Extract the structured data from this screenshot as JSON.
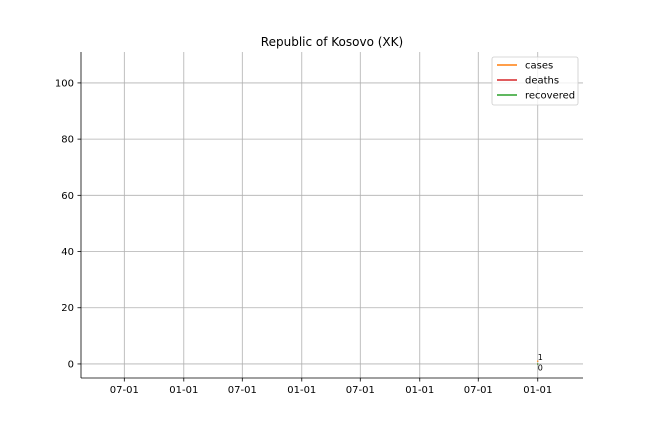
{
  "chart_data": {
    "type": "line",
    "title": "Republic of Kosovo (XK)",
    "xlabel": "",
    "ylabel": "",
    "ylim": [
      -5,
      111
    ],
    "yticks": [
      0,
      20,
      40,
      60,
      80,
      100
    ],
    "xlim": [
      "2020-02-18",
      "2024-05-20"
    ],
    "xticks": [
      {
        "date": "2020-07-01",
        "label": "07-01"
      },
      {
        "date": "2021-01-01",
        "label": "01-01"
      },
      {
        "date": "2021-07-01",
        "label": "07-01"
      },
      {
        "date": "2022-01-01",
        "label": "01-01"
      },
      {
        "date": "2022-07-01",
        "label": "07-01"
      },
      {
        "date": "2023-01-01",
        "label": "01-01"
      },
      {
        "date": "2023-07-01",
        "label": "07-01"
      },
      {
        "date": "2024-01-01",
        "label": "01-01"
      }
    ],
    "grid": true,
    "legend_position": "top-right",
    "series": [
      {
        "name": "cases",
        "color": "#ff7f0e",
        "points": [
          {
            "x": "2024-01-01",
            "y": 1
          }
        ]
      },
      {
        "name": "deaths",
        "color": "#d62728",
        "points": [
          {
            "x": "2024-01-01",
            "y": 0
          }
        ]
      },
      {
        "name": "recovered",
        "color": "#2ca02c",
        "points": [
          {
            "x": "2024-01-01",
            "y": 0
          }
        ]
      }
    ],
    "annotations": [
      {
        "text": "1",
        "x": "2024-01-01",
        "y": 1
      },
      {
        "text": "0",
        "x": "2024-01-01",
        "y": 0
      }
    ]
  }
}
